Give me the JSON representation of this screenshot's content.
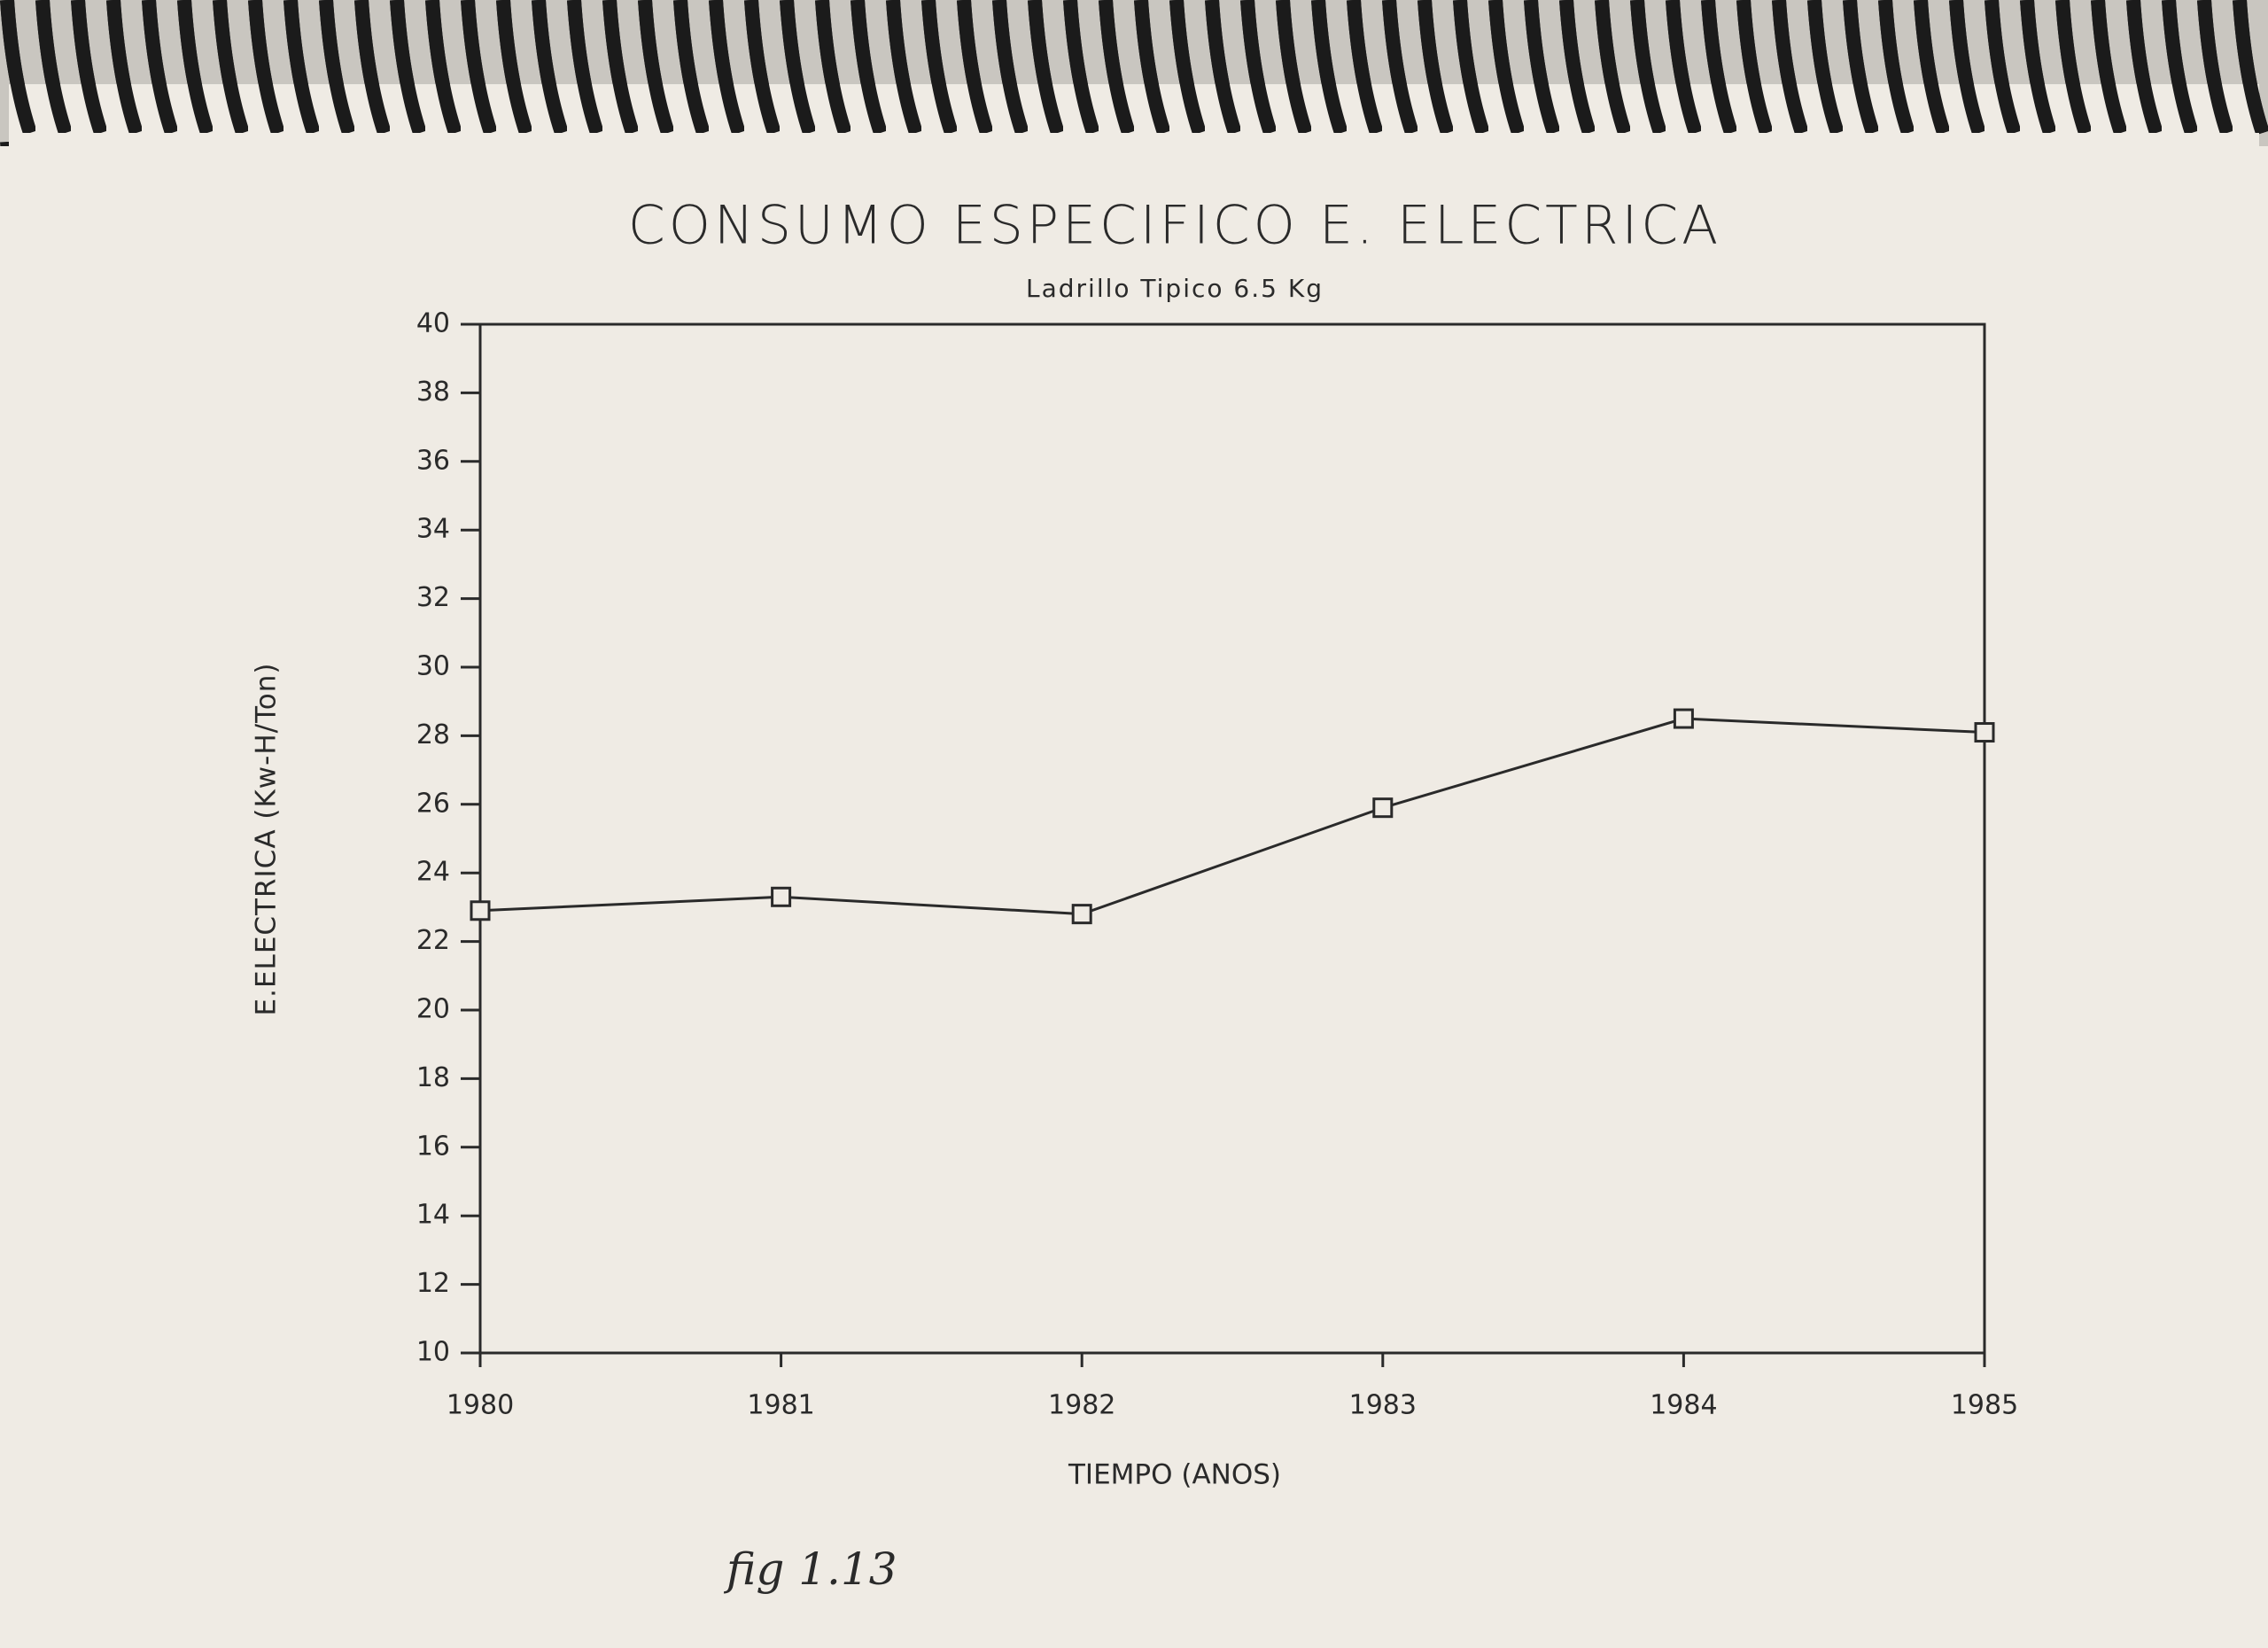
{
  "chart_data": {
    "type": "line",
    "title": "CONSUMO ESPECIFICO E. ELECTRICA",
    "subtitle": "Ladrillo Tipico 6.5 Kg",
    "x_label": "TIEMPO (ANOS)",
    "y_label": "E.ELECTRICA (Kw-H/Ton)",
    "annotation": "fig 1.13",
    "x": [
      1980,
      1981,
      1982,
      1983,
      1984,
      1985
    ],
    "series": [
      {
        "name": "E.ELECTRICA",
        "color": "#2a2a2a",
        "values": [
          22.9,
          23.3,
          22.8,
          25.9,
          28.5,
          28.1
        ]
      }
    ],
    "xlim": [
      1980,
      1985
    ],
    "xticks": [
      1980,
      1981,
      1982,
      1983,
      1984,
      1985
    ],
    "ylim": [
      10,
      40
    ],
    "yticks": [
      10,
      12,
      14,
      16,
      18,
      20,
      22,
      24,
      26,
      28,
      30,
      32,
      34,
      36,
      38,
      40
    ],
    "marker": "square"
  }
}
